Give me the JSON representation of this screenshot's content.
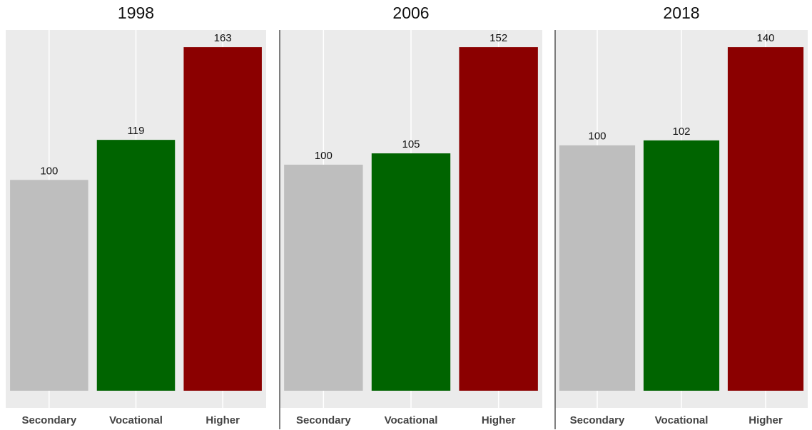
{
  "chart_data": [
    {
      "type": "bar",
      "title": "1998",
      "categories": [
        "Secondary",
        "Vocational",
        "Higher"
      ],
      "values": [
        100,
        119,
        163
      ],
      "colors": [
        "#bebebe",
        "#006400",
        "#8b0000"
      ],
      "ylim": [
        -8.15,
        171.15
      ]
    },
    {
      "type": "bar",
      "title": "2006",
      "categories": [
        "Secondary",
        "Vocational",
        "Higher"
      ],
      "values": [
        100,
        105,
        152
      ],
      "colors": [
        "#bebebe",
        "#006400",
        "#8b0000"
      ],
      "ylim": [
        -7.6,
        159.6
      ]
    },
    {
      "type": "bar",
      "title": "2018",
      "categories": [
        "Secondary",
        "Vocational",
        "Higher"
      ],
      "values": [
        100,
        102,
        140
      ],
      "colors": [
        "#bebebe",
        "#006400",
        "#8b0000"
      ],
      "ylim": [
        -7,
        147
      ]
    }
  ]
}
